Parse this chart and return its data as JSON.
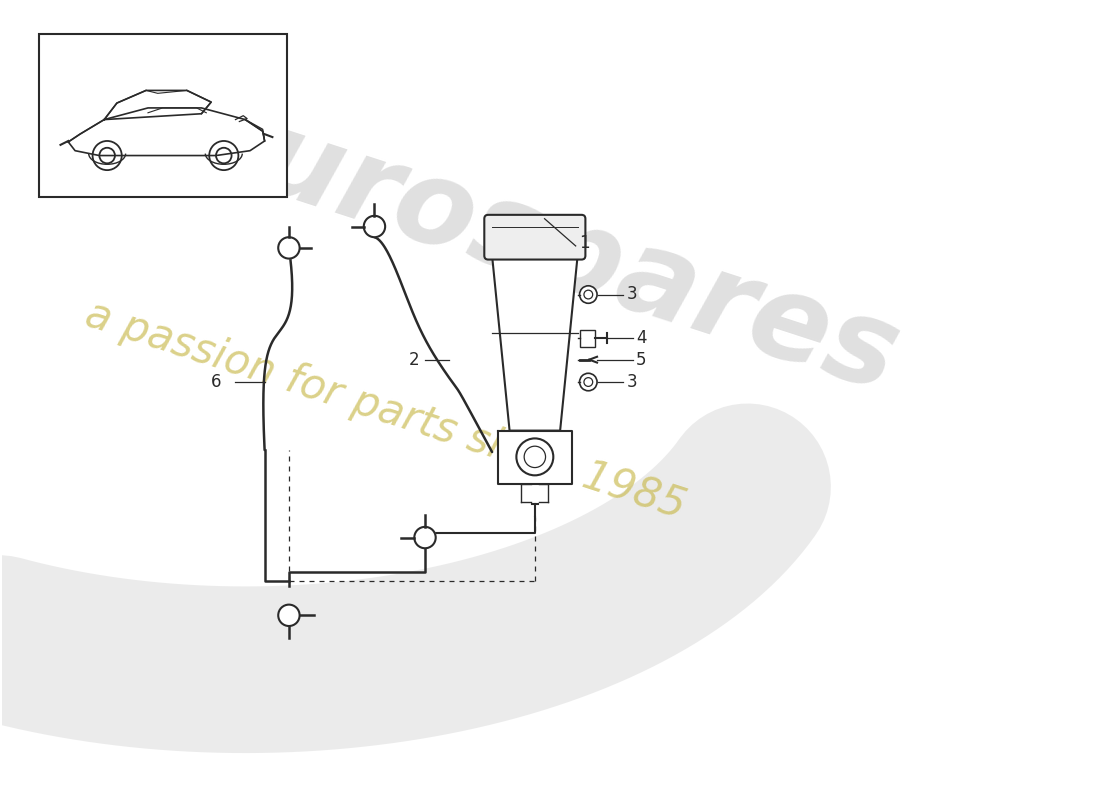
{
  "bg_color": "#ffffff",
  "line_color": "#2a2a2a",
  "watermark_gray": "#cccccc",
  "watermark_yellow": "#c8b84a",
  "watermark_alpha_gray": 0.5,
  "watermark_alpha_yellow": 0.6
}
